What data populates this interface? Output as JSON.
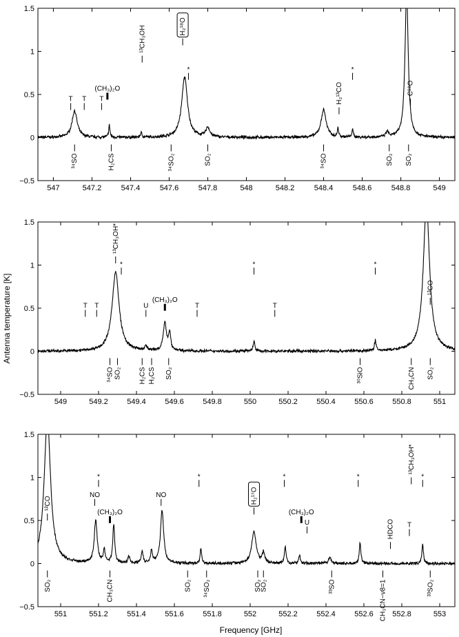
{
  "xlabel": "Frequency [GHz]",
  "ylabel": "Antenna temperature [K]",
  "chart_data": [
    {
      "type": "line",
      "xlim": [
        546.92,
        549.08
      ],
      "ylim": [
        -0.5,
        1.5
      ],
      "xticks": [
        547,
        547.2,
        547.4,
        547.6,
        547.8,
        548,
        548.2,
        548.4,
        548.6,
        548.8,
        549
      ],
      "xtick_labels": [
        "547",
        "547.2",
        "547.4",
        "547.6",
        "547.8",
        "548",
        "548.2",
        "548.4",
        "548.6",
        "548.8",
        "549"
      ],
      "yticks": [
        -0.5,
        0,
        0.5,
        1,
        1.5
      ],
      "ytick_labels": [
        "−0.5",
        "0",
        "0.5",
        "1",
        "1.5"
      ],
      "peaks": [
        {
          "x": 547.11,
          "h": 0.31,
          "w": 0.016
        },
        {
          "x": 547.29,
          "h": 0.14,
          "w": 0.004
        },
        {
          "x": 547.455,
          "h": 0.05,
          "w": 0.005
        },
        {
          "x": 547.68,
          "h": 0.7,
          "w": 0.018
        },
        {
          "x": 547.8,
          "h": 0.11,
          "w": 0.012
        },
        {
          "x": 548.4,
          "h": 0.32,
          "w": 0.016
        },
        {
          "x": 548.475,
          "h": 0.1,
          "w": 0.004
        },
        {
          "x": 548.55,
          "h": 0.08,
          "w": 0.005
        },
        {
          "x": 548.73,
          "h": 0.06,
          "w": 0.008
        },
        {
          "x": 548.83,
          "h": 1.7,
          "w": 0.01
        }
      ],
      "annotations_top": [
        {
          "x": 547.09,
          "y": 0.4,
          "text": "T"
        },
        {
          "x": 547.16,
          "y": 0.4,
          "text": "T"
        },
        {
          "x": 547.25,
          "y": 0.4,
          "text": "T"
        },
        {
          "x": 547.28,
          "y": 0.52,
          "text": "(CH3)2O",
          "thick": true
        },
        {
          "x": 547.46,
          "y": 0.95,
          "text": "13CH3OH",
          "vertical": true
        },
        {
          "x": 547.67,
          "y": 1.15,
          "text": "H218O",
          "vertical": true,
          "boxed": true
        },
        {
          "x": 547.7,
          "y": 0.75,
          "text": "*"
        },
        {
          "x": 548.48,
          "y": 0.35,
          "text": "H213CO",
          "vertical": true
        },
        {
          "x": 548.55,
          "y": 0.75,
          "text": "*"
        },
        {
          "x": 548.85,
          "y": 0.45,
          "text": "C18O",
          "vertical": true
        }
      ],
      "annotations_bottom": [
        {
          "x": 547.11,
          "text": "34SO"
        },
        {
          "x": 547.3,
          "text": "H2CS"
        },
        {
          "x": 547.61,
          "text": "34SO2"
        },
        {
          "x": 547.8,
          "text": "SO2"
        },
        {
          "x": 548.4,
          "text": "34SO"
        },
        {
          "x": 548.74,
          "text": "SO2"
        },
        {
          "x": 548.84,
          "text": "SO2"
        }
      ]
    },
    {
      "type": "line",
      "xlim": [
        548.88,
        551.08
      ],
      "ylim": [
        -0.5,
        1.5
      ],
      "xticks": [
        549,
        549.2,
        549.4,
        549.6,
        549.8,
        550,
        550.2,
        550.4,
        550.6,
        550.8,
        551
      ],
      "xtick_labels": [
        "549",
        "549.2",
        "549.4",
        "549.6",
        "549.8",
        "550",
        "550.2",
        "550.4",
        "550.6",
        "550.8",
        "551"
      ],
      "yticks": [
        -0.5,
        0,
        0.5,
        1,
        1.5
      ],
      "ytick_labels": [
        "−0.5",
        "0",
        "0.5",
        "1",
        "1.5"
      ],
      "peaks": [
        {
          "x": 549.29,
          "h": 0.92,
          "w": 0.022
        },
        {
          "x": 549.45,
          "h": 0.06,
          "w": 0.006
        },
        {
          "x": 549.55,
          "h": 0.32,
          "w": 0.01
        },
        {
          "x": 549.575,
          "h": 0.2,
          "w": 0.007
        },
        {
          "x": 550.02,
          "h": 0.12,
          "w": 0.005
        },
        {
          "x": 550.66,
          "h": 0.12,
          "w": 0.005
        },
        {
          "x": 550.93,
          "h": 1.7,
          "w": 0.02
        }
      ],
      "annotations_top": [
        {
          "x": 549.13,
          "y": 0.48,
          "text": "T"
        },
        {
          "x": 549.19,
          "y": 0.48,
          "text": "T"
        },
        {
          "x": 549.45,
          "y": 0.48,
          "text": "U"
        },
        {
          "x": 549.55,
          "y": 0.55,
          "text": "(CH3)2O",
          "thick": true
        },
        {
          "x": 549.72,
          "y": 0.48,
          "text": "T"
        },
        {
          "x": 550.13,
          "y": 0.48,
          "text": "T"
        },
        {
          "x": 549.29,
          "y": 1.1,
          "text": "13CH3OH*",
          "vertical": true
        },
        {
          "x": 549.32,
          "y": 0.97,
          "text": "*"
        },
        {
          "x": 550.02,
          "y": 0.97,
          "text": "*"
        },
        {
          "x": 550.66,
          "y": 0.97,
          "text": "*"
        },
        {
          "x": 550.95,
          "y": 0.62,
          "text": "13CO",
          "vertical": true
        }
      ],
      "annotations_bottom": [
        {
          "x": 549.26,
          "text": "34SO"
        },
        {
          "x": 549.3,
          "text": "SO2"
        },
        {
          "x": 549.43,
          "text": "H2CS"
        },
        {
          "x": 549.48,
          "text": "H2CS"
        },
        {
          "x": 549.57,
          "text": "SO2"
        },
        {
          "x": 550.58,
          "text": "30SiO"
        },
        {
          "x": 550.85,
          "text": "CH3CN"
        },
        {
          "x": 550.95,
          "text": "SO2"
        }
      ]
    },
    {
      "type": "line",
      "xlim": [
        550.88,
        553.08
      ],
      "ylim": [
        -0.5,
        1.5
      ],
      "xticks": [
        551,
        551.2,
        551.4,
        551.6,
        551.8,
        552,
        552.2,
        552.4,
        552.6,
        552.8,
        553
      ],
      "xtick_labels": [
        "551",
        "551.2",
        "551.4",
        "551.6",
        "551.8",
        "552",
        "552.2",
        "552.4",
        "552.6",
        "552.8",
        "553"
      ],
      "yticks": [
        -0.5,
        0,
        0.5,
        1,
        1.5
      ],
      "ytick_labels": [
        "−0.5",
        "0",
        "0.5",
        "1",
        "1.5"
      ],
      "peaks": [
        {
          "x": 550.93,
          "h": 1.7,
          "w": 0.02
        },
        {
          "x": 551.185,
          "h": 0.5,
          "w": 0.009
        },
        {
          "x": 551.23,
          "h": 0.15,
          "w": 0.006
        },
        {
          "x": 551.28,
          "h": 0.45,
          "w": 0.006
        },
        {
          "x": 551.36,
          "h": 0.08,
          "w": 0.006
        },
        {
          "x": 551.43,
          "h": 0.14,
          "w": 0.006
        },
        {
          "x": 551.48,
          "h": 0.15,
          "w": 0.006
        },
        {
          "x": 551.535,
          "h": 0.62,
          "w": 0.01
        },
        {
          "x": 551.74,
          "h": 0.17,
          "w": 0.005
        },
        {
          "x": 552.02,
          "h": 0.37,
          "w": 0.014
        },
        {
          "x": 552.07,
          "h": 0.12,
          "w": 0.008
        },
        {
          "x": 552.185,
          "h": 0.2,
          "w": 0.005
        },
        {
          "x": 552.26,
          "h": 0.1,
          "w": 0.005
        },
        {
          "x": 552.42,
          "h": 0.07,
          "w": 0.008
        },
        {
          "x": 552.58,
          "h": 0.25,
          "w": 0.005
        },
        {
          "x": 552.91,
          "h": 0.22,
          "w": 0.005
        }
      ],
      "annotations_top": [
        {
          "x": 550.93,
          "y": 0.58,
          "text": "12CO",
          "vertical": true
        },
        {
          "x": 551.18,
          "y": 0.75,
          "text": "NO"
        },
        {
          "x": 551.26,
          "y": 0.55,
          "text": "(CH3)2O",
          "thick": true
        },
        {
          "x": 551.53,
          "y": 0.75,
          "text": "NO"
        },
        {
          "x": 552.02,
          "y": 0.65,
          "text": "H217O",
          "vertical": true,
          "boxed": true
        },
        {
          "x": 552.27,
          "y": 0.55,
          "text": "(CH3)2O",
          "thick": true
        },
        {
          "x": 552.3,
          "y": 0.43,
          "text": "U"
        },
        {
          "x": 552.74,
          "y": 0.25,
          "text": "HDCO",
          "vertical": true
        },
        {
          "x": 552.84,
          "y": 0.4,
          "text": "T"
        },
        {
          "x": 552.85,
          "y": 1.0,
          "text": "13CH3OH*",
          "vertical": true
        },
        {
          "x": 551.2,
          "y": 0.97,
          "text": "*"
        },
        {
          "x": 551.73,
          "y": 0.97,
          "text": "*"
        },
        {
          "x": 552.18,
          "y": 0.97,
          "text": "*"
        },
        {
          "x": 552.57,
          "y": 0.97,
          "text": "*"
        },
        {
          "x": 552.91,
          "y": 0.97,
          "text": "*"
        }
      ],
      "annotations_bottom": [
        {
          "x": 550.93,
          "text": "SO2"
        },
        {
          "x": 551.26,
          "text": "CH3CN"
        },
        {
          "x": 551.67,
          "text": "SO2"
        },
        {
          "x": 551.77,
          "text": "34SO2"
        },
        {
          "x": 552.04,
          "text": "SO2"
        },
        {
          "x": 552.07,
          "text": "SO2"
        },
        {
          "x": 552.43,
          "text": "33SO"
        },
        {
          "x": 552.7,
          "text": "CH3CN−ν8=1"
        },
        {
          "x": 552.95,
          "text": "33SO2"
        }
      ]
    }
  ]
}
